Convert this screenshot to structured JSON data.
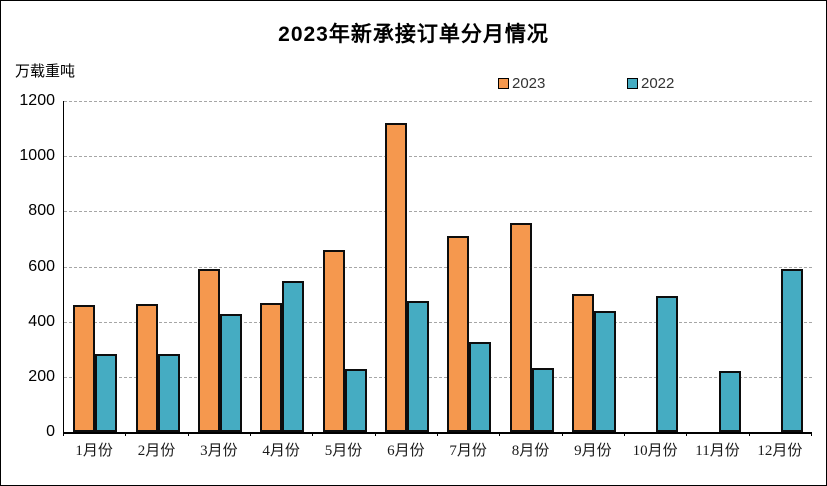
{
  "chart": {
    "background": "#ffffff",
    "frame_border_color": "#000000",
    "gridline_color": "#a6a6a6",
    "axis_color": "#000000"
  },
  "chart_data": {
    "type": "bar",
    "title": "2023年新承接订单分月情况",
    "ylabel": "万载重吨",
    "xlabel": "",
    "categories": [
      "1月份",
      "2月份",
      "3月份",
      "4月份",
      "5月份",
      "6月份",
      "7月份",
      "8月份",
      "9月份",
      "10月份",
      "11月份",
      "12月份"
    ],
    "series": [
      {
        "name": "2023",
        "color": "#F5984E",
        "values": [
          460,
          463,
          591,
          466,
          659,
          1122,
          710,
          756,
          502,
          null,
          null,
          null
        ]
      },
      {
        "name": "2022",
        "color": "#45ACC2",
        "values": [
          283,
          283,
          427,
          547,
          228,
          476,
          327,
          232,
          440,
          493,
          220,
          591
        ]
      }
    ],
    "ylim": [
      0,
      1200
    ],
    "yticks": [
      0,
      200,
      400,
      600,
      800,
      1000,
      1200
    ],
    "grid": true,
    "grid_style": "dashed",
    "legend_position": "top-center",
    "bar_border_color": "#0d0d0d"
  }
}
